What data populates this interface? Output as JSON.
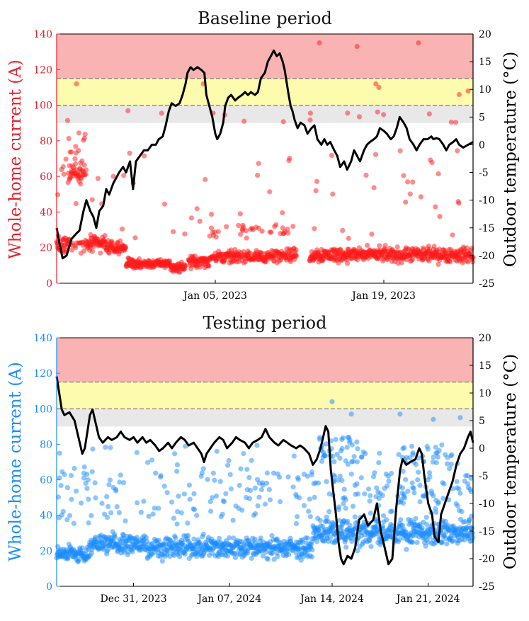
{
  "chart_data": [
    {
      "id": "baseline",
      "type": "scatter",
      "title": "Baseline period",
      "ylabel_left": "Whole-home current (A)",
      "ylabel_right": "Outdoor temperature (°C)",
      "y_left_ticks": [
        "0",
        "20",
        "40",
        "60",
        "80",
        "100",
        "120",
        "140"
      ],
      "y_right_ticks": [
        "20",
        "15",
        "10",
        "5",
        "0",
        "-5",
        "-10",
        "-15",
        "-20",
        "-25"
      ],
      "ylim_left": [
        0,
        140
      ],
      "ylim_right": [
        -25,
        20
      ],
      "x_range_days": [
        0,
        42
      ],
      "x_ticks": [
        {
          "label": "Jan 05, 2023",
          "day": 16
        },
        {
          "label": "Jan 19, 2023",
          "day": 33
        }
      ],
      "bands": [
        {
          "from": 90,
          "to": 100,
          "color": "#e8e8e8"
        },
        {
          "from": 100,
          "to": 115,
          "color": "#fdfbad"
        },
        {
          "from": 115,
          "to": 140,
          "color": "#f9b3b3"
        }
      ],
      "thresholds": [
        100,
        115
      ],
      "scatter_color": "#ff1a1a",
      "axis_color": "#e8202a",
      "temperature_series": [
        [
          0,
          -15
        ],
        [
          0.3,
          -18
        ],
        [
          0.6,
          -20.5
        ],
        [
          1.0,
          -20
        ],
        [
          1.5,
          -17
        ],
        [
          2.0,
          -16
        ],
        [
          2.3,
          -15.5
        ],
        [
          2.7,
          -12
        ],
        [
          3.0,
          -10
        ],
        [
          3.4,
          -12
        ],
        [
          3.7,
          -13
        ],
        [
          4.0,
          -15
        ],
        [
          4.3,
          -12
        ],
        [
          4.7,
          -11
        ],
        [
          5.0,
          -8
        ],
        [
          5.3,
          -9
        ],
        [
          5.7,
          -7
        ],
        [
          6.0,
          -6
        ],
        [
          6.3,
          -5
        ],
        [
          6.7,
          -4
        ],
        [
          7.0,
          -5
        ],
        [
          7.4,
          -3
        ],
        [
          7.7,
          -8
        ],
        [
          8.0,
          -3
        ],
        [
          8.4,
          -2
        ],
        [
          8.8,
          -1
        ],
        [
          9.2,
          -1
        ],
        [
          9.6,
          0
        ],
        [
          10.0,
          0
        ],
        [
          10.3,
          1
        ],
        [
          10.7,
          1.5
        ],
        [
          11.0,
          3.5
        ],
        [
          11.3,
          6
        ],
        [
          11.6,
          7.5
        ],
        [
          12.0,
          7
        ],
        [
          12.4,
          7.5
        ],
        [
          12.7,
          9
        ],
        [
          13.0,
          11
        ],
        [
          13.2,
          13
        ],
        [
          13.5,
          14
        ],
        [
          13.8,
          13.5
        ],
        [
          14.2,
          14
        ],
        [
          14.6,
          13.5
        ],
        [
          14.9,
          13
        ],
        [
          15.1,
          9
        ],
        [
          15.4,
          7
        ],
        [
          15.7,
          5
        ],
        [
          16.0,
          2
        ],
        [
          16.2,
          1
        ],
        [
          16.5,
          2
        ],
        [
          16.8,
          4
        ],
        [
          17.0,
          7
        ],
        [
          17.3,
          8.5
        ],
        [
          17.6,
          9
        ],
        [
          18.0,
          8
        ],
        [
          18.3,
          8.5
        ],
        [
          18.7,
          9
        ],
        [
          19.0,
          9.5
        ],
        [
          19.3,
          9
        ],
        [
          19.6,
          9.5
        ],
        [
          20.0,
          9
        ],
        [
          20.3,
          9.5
        ],
        [
          20.6,
          12
        ],
        [
          21.0,
          13
        ],
        [
          21.3,
          15
        ],
        [
          21.6,
          16
        ],
        [
          21.9,
          17
        ],
        [
          22.2,
          16
        ],
        [
          22.5,
          16.5
        ],
        [
          22.8,
          15
        ],
        [
          23.0,
          13.5
        ],
        [
          23.4,
          9
        ],
        [
          23.6,
          7
        ],
        [
          23.8,
          6
        ],
        [
          24.0,
          4.5
        ],
        [
          24.3,
          3
        ],
        [
          24.6,
          4
        ],
        [
          25.0,
          3.5
        ],
        [
          25.3,
          2
        ],
        [
          25.7,
          3
        ],
        [
          26.0,
          3.5
        ],
        [
          26.3,
          1
        ],
        [
          26.7,
          0
        ],
        [
          27.0,
          1
        ],
        [
          27.3,
          0
        ],
        [
          27.6,
          0.5
        ],
        [
          28.0,
          -1
        ],
        [
          28.3,
          -2
        ],
        [
          28.6,
          -4
        ],
        [
          29.0,
          -3
        ],
        [
          29.3,
          -4.5
        ],
        [
          29.7,
          -3
        ],
        [
          30.0,
          -1
        ],
        [
          30.3,
          -2
        ],
        [
          30.6,
          -3
        ],
        [
          31.0,
          -1
        ],
        [
          31.3,
          0
        ],
        [
          31.6,
          0.5
        ],
        [
          32.0,
          1
        ],
        [
          32.3,
          1.5
        ],
        [
          32.6,
          3
        ],
        [
          33.0,
          2.5
        ],
        [
          33.3,
          2
        ],
        [
          33.7,
          1
        ],
        [
          34.0,
          1.5
        ],
        [
          34.3,
          3
        ],
        [
          34.6,
          5
        ],
        [
          35.0,
          4
        ],
        [
          35.3,
          3
        ],
        [
          35.6,
          1
        ],
        [
          36.0,
          0
        ],
        [
          36.3,
          -1
        ],
        [
          36.6,
          0
        ],
        [
          37.0,
          1
        ],
        [
          37.4,
          1
        ],
        [
          37.8,
          1.5
        ],
        [
          38.0,
          1
        ],
        [
          38.3,
          1.2
        ],
        [
          38.6,
          1
        ],
        [
          39.0,
          0
        ],
        [
          39.3,
          -1
        ],
        [
          39.6,
          0
        ],
        [
          40.0,
          0.5
        ],
        [
          40.3,
          1
        ],
        [
          40.6,
          0
        ],
        [
          41.0,
          -0.5
        ],
        [
          41.5,
          0
        ],
        [
          42.0,
          0.5
        ]
      ]
    },
    {
      "id": "testing",
      "type": "scatter",
      "title": "Testing period",
      "ylabel_left": "Whole-home current (A)",
      "ylabel_right": "Outdoor temperature (°C)",
      "y_left_ticks": [
        "0",
        "20",
        "40",
        "60",
        "80",
        "100",
        "120",
        "140"
      ],
      "y_right_ticks": [
        "20",
        "15",
        "10",
        "5",
        "0",
        "-5",
        "-10",
        "-15",
        "-20",
        "-25"
      ],
      "ylim_left": [
        0,
        140
      ],
      "ylim_right": [
        -25,
        20
      ],
      "x_range_days": [
        0,
        32.5
      ],
      "x_ticks": [
        {
          "label": "Dec 31, 2023",
          "day": 6
        },
        {
          "label": "Jan 07, 2024",
          "day": 13.5
        },
        {
          "label": "Jan 14, 2024",
          "day": 21.5
        },
        {
          "label": "Jan 21, 2024",
          "day": 29
        }
      ],
      "bands": [
        {
          "from": 90,
          "to": 100,
          "color": "#e8e8e8"
        },
        {
          "from": 100,
          "to": 115,
          "color": "#fdfbad"
        },
        {
          "from": 115,
          "to": 140,
          "color": "#f9b3b3"
        }
      ],
      "thresholds": [
        100,
        115
      ],
      "scatter_color": "#1a8cff",
      "axis_color": "#1a8cff",
      "temperature_series": [
        [
          0,
          13
        ],
        [
          0.2,
          10
        ],
        [
          0.4,
          7
        ],
        [
          0.6,
          6
        ],
        [
          1.0,
          6.5
        ],
        [
          1.4,
          5
        ],
        [
          1.6,
          3
        ],
        [
          1.8,
          1
        ],
        [
          2.0,
          -1
        ],
        [
          2.2,
          0
        ],
        [
          2.4,
          3
        ],
        [
          2.6,
          6
        ],
        [
          2.8,
          7
        ],
        [
          3.0,
          5
        ],
        [
          3.3,
          2
        ],
        [
          3.6,
          1
        ],
        [
          4.0,
          2
        ],
        [
          4.3,
          1.5
        ],
        [
          4.7,
          2
        ],
        [
          5.0,
          3
        ],
        [
          5.3,
          2
        ],
        [
          5.7,
          1.5
        ],
        [
          6.0,
          2
        ],
        [
          6.3,
          1
        ],
        [
          6.7,
          2
        ],
        [
          7.0,
          1
        ],
        [
          7.3,
          1.5
        ],
        [
          7.7,
          0.5
        ],
        [
          8.0,
          -0.5
        ],
        [
          8.3,
          0
        ],
        [
          8.7,
          1
        ],
        [
          9.0,
          0
        ],
        [
          9.3,
          1
        ],
        [
          9.7,
          2
        ],
        [
          10.0,
          1.5
        ],
        [
          10.3,
          0.5
        ],
        [
          10.7,
          1
        ],
        [
          11.0,
          0
        ],
        [
          11.3,
          -1
        ],
        [
          11.5,
          -2.5
        ],
        [
          11.7,
          -1
        ],
        [
          12.0,
          0
        ],
        [
          12.3,
          1
        ],
        [
          12.7,
          2
        ],
        [
          13.0,
          1.5
        ],
        [
          13.3,
          0
        ],
        [
          13.7,
          1
        ],
        [
          14.0,
          2
        ],
        [
          14.3,
          1.5
        ],
        [
          14.7,
          1
        ],
        [
          15.0,
          0
        ],
        [
          15.3,
          1
        ],
        [
          15.7,
          1.5
        ],
        [
          16.0,
          2
        ],
        [
          16.3,
          3.5
        ],
        [
          16.6,
          2
        ],
        [
          17.0,
          1
        ],
        [
          17.3,
          0.5
        ],
        [
          17.7,
          1.5
        ],
        [
          18.0,
          1
        ],
        [
          18.3,
          0.5
        ],
        [
          18.7,
          0
        ],
        [
          19.0,
          0.5
        ],
        [
          19.3,
          0
        ],
        [
          19.7,
          -1
        ],
        [
          20.0,
          -3
        ],
        [
          20.3,
          -2
        ],
        [
          20.6,
          0
        ],
        [
          20.9,
          3
        ],
        [
          21.0,
          4
        ],
        [
          21.2,
          3
        ],
        [
          21.4,
          -4
        ],
        [
          21.6,
          -8
        ],
        [
          21.8,
          -12
        ],
        [
          22.0,
          -17
        ],
        [
          22.2,
          -20
        ],
        [
          22.4,
          -21
        ],
        [
          22.7,
          -19.5
        ],
        [
          23.0,
          -20
        ],
        [
          23.3,
          -18
        ],
        [
          23.6,
          -13
        ],
        [
          24.0,
          -12
        ],
        [
          24.3,
          -14
        ],
        [
          24.7,
          -13
        ],
        [
          25.0,
          -10
        ],
        [
          25.3,
          -15
        ],
        [
          25.6,
          -18
        ],
        [
          25.9,
          -21
        ],
        [
          26.2,
          -20
        ],
        [
          26.5,
          -11
        ],
        [
          26.8,
          -4
        ],
        [
          27.0,
          -2
        ],
        [
          27.3,
          -3
        ],
        [
          27.6,
          -2.5
        ],
        [
          28.0,
          -2
        ],
        [
          28.3,
          0
        ],
        [
          28.5,
          -1
        ],
        [
          28.7,
          -5
        ],
        [
          29.0,
          -10
        ],
        [
          29.3,
          -12
        ],
        [
          29.5,
          -16
        ],
        [
          29.8,
          -17
        ],
        [
          30.0,
          -12
        ],
        [
          30.3,
          -10
        ],
        [
          30.6,
          -8
        ],
        [
          30.9,
          -6
        ],
        [
          31.2,
          -3
        ],
        [
          31.5,
          -1
        ],
        [
          31.8,
          0
        ],
        [
          32.1,
          2
        ],
        [
          32.3,
          3
        ],
        [
          32.5,
          1
        ]
      ]
    }
  ]
}
